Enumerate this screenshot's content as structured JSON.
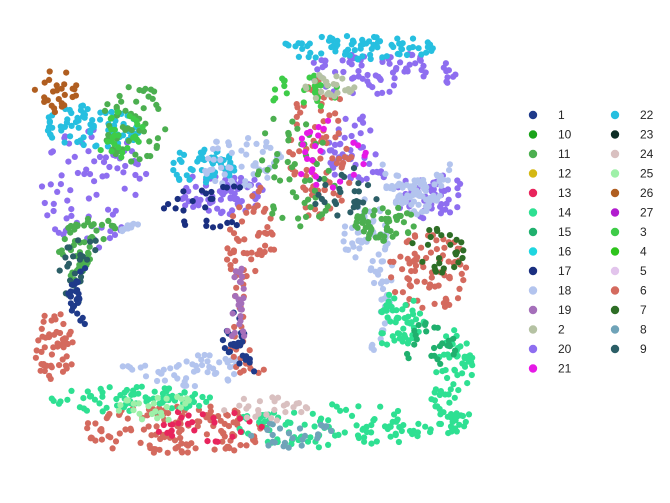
{
  "chart_data": {
    "type": "scatter",
    "title": "",
    "xlabel": "",
    "ylabel": "",
    "axes_visible": false,
    "grid": false,
    "legend_placement": "right",
    "legend_columns": 2,
    "xlim": [
      0,
      100
    ],
    "ylim": [
      0,
      100
    ],
    "series": [
      {
        "name": "1",
        "color": "#1f3a8a"
      },
      {
        "name": "10",
        "color": "#1aa31a"
      },
      {
        "name": "11",
        "color": "#4caf50"
      },
      {
        "name": "12",
        "color": "#d4b814"
      },
      {
        "name": "13",
        "color": "#e8245c"
      },
      {
        "name": "14",
        "color": "#2ee092"
      },
      {
        "name": "15",
        "color": "#20b06e"
      },
      {
        "name": "16",
        "color": "#1fd6e0"
      },
      {
        "name": "17",
        "color": "#1a2f80"
      },
      {
        "name": "18",
        "color": "#b3c4ee"
      },
      {
        "name": "19",
        "color": "#a56fba"
      },
      {
        "name": "2",
        "color": "#b5c2a3"
      },
      {
        "name": "20",
        "color": "#8e6ef0"
      },
      {
        "name": "21",
        "color": "#e619e6"
      },
      {
        "name": "22",
        "color": "#26bfe0"
      },
      {
        "name": "23",
        "color": "#0d2e26"
      },
      {
        "name": "24",
        "color": "#d9c0c0"
      },
      {
        "name": "25",
        "color": "#9ef0a8"
      },
      {
        "name": "26",
        "color": "#b05e20"
      },
      {
        "name": "27",
        "color": "#b21ccf"
      },
      {
        "name": "3",
        "color": "#3ecc48"
      },
      {
        "name": "4",
        "color": "#2ec41c"
      },
      {
        "name": "5",
        "color": "#e2c4ec"
      },
      {
        "name": "6",
        "color": "#d46a5e"
      },
      {
        "name": "7",
        "color": "#2e6e26"
      },
      {
        "name": "8",
        "color": "#6fa3b8"
      },
      {
        "name": "9",
        "color": "#2b5e66"
      }
    ],
    "regions": [
      {
        "cluster": "20",
        "weight": 3,
        "cx": 14,
        "cy": 36,
        "rx": 12,
        "ry": 14
      },
      {
        "cluster": "20",
        "weight": 3,
        "cx": 42,
        "cy": 37,
        "rx": 10,
        "ry": 5
      },
      {
        "cluster": "20",
        "weight": 3,
        "cx": 77,
        "cy": 10,
        "rx": 17,
        "ry": 5
      },
      {
        "cluster": "20",
        "weight": 2,
        "cx": 73,
        "cy": 27,
        "rx": 9,
        "ry": 8
      },
      {
        "cluster": "20",
        "weight": 2,
        "cx": 88,
        "cy": 37,
        "rx": 8,
        "ry": 6
      },
      {
        "cluster": "22",
        "weight": 3,
        "cx": 14,
        "cy": 22,
        "rx": 11,
        "ry": 5
      },
      {
        "cluster": "22",
        "weight": 2,
        "cx": 38,
        "cy": 31,
        "rx": 8,
        "ry": 4
      },
      {
        "cluster": "22",
        "weight": 3,
        "cx": 72,
        "cy": 4,
        "rx": 18,
        "ry": 3
      },
      {
        "cluster": "18",
        "weight": 3,
        "cx": 23,
        "cy": 58,
        "rx": 7,
        "ry": 14
      },
      {
        "cluster": "18",
        "weight": 2,
        "cx": 34,
        "cy": 77,
        "rx": 14,
        "ry": 4
      },
      {
        "cluster": "18",
        "weight": 3,
        "cx": 74,
        "cy": 56,
        "rx": 6,
        "ry": 18
      },
      {
        "cluster": "18",
        "weight": 3,
        "cx": 85,
        "cy": 28,
        "rx": 8,
        "ry": 14
      },
      {
        "cluster": "18",
        "weight": 2,
        "cx": 47,
        "cy": 30,
        "rx": 10,
        "ry": 6
      },
      {
        "cluster": "6",
        "weight": 5,
        "cx": 32,
        "cy": 91,
        "rx": 20,
        "ry": 6
      },
      {
        "cluster": "6",
        "weight": 3,
        "cx": 49,
        "cy": 58,
        "rx": 6,
        "ry": 24
      },
      {
        "cluster": "6",
        "weight": 3,
        "cx": 64,
        "cy": 28,
        "rx": 7,
        "ry": 17
      },
      {
        "cluster": "6",
        "weight": 3,
        "cx": 88,
        "cy": 55,
        "rx": 9,
        "ry": 9
      },
      {
        "cluster": "6",
        "weight": 2,
        "cx": 5,
        "cy": 72,
        "rx": 5,
        "ry": 8
      },
      {
        "cluster": "14",
        "weight": 4,
        "cx": 67,
        "cy": 90,
        "rx": 22,
        "ry": 5
      },
      {
        "cluster": "14",
        "weight": 3,
        "cx": 93,
        "cy": 80,
        "rx": 5,
        "ry": 12
      },
      {
        "cluster": "14",
        "weight": 3,
        "cx": 22,
        "cy": 84,
        "rx": 18,
        "ry": 3
      },
      {
        "cluster": "14",
        "weight": 2,
        "cx": 80,
        "cy": 66,
        "rx": 7,
        "ry": 6
      },
      {
        "cluster": "11",
        "weight": 2,
        "cx": 23,
        "cy": 21,
        "rx": 7,
        "ry": 9
      },
      {
        "cluster": "11",
        "weight": 2,
        "cx": 59,
        "cy": 31,
        "rx": 9,
        "ry": 14
      },
      {
        "cluster": "11",
        "weight": 2,
        "cx": 78,
        "cy": 44,
        "rx": 7,
        "ry": 4
      },
      {
        "cluster": "11",
        "weight": 2,
        "cx": 14,
        "cy": 50,
        "rx": 8,
        "ry": 8
      },
      {
        "cluster": "3",
        "weight": 1,
        "cx": 20,
        "cy": 24,
        "rx": 6,
        "ry": 6
      },
      {
        "cluster": "3",
        "weight": 1,
        "cx": 60,
        "cy": 14,
        "rx": 8,
        "ry": 4
      },
      {
        "cluster": "2",
        "weight": 1,
        "cx": 66,
        "cy": 13,
        "rx": 6,
        "ry": 3
      },
      {
        "cluster": "9",
        "weight": 1,
        "cx": 70,
        "cy": 37,
        "rx": 8,
        "ry": 6
      },
      {
        "cluster": "9",
        "weight": 1,
        "cx": 12,
        "cy": 55,
        "rx": 6,
        "ry": 8
      },
      {
        "cluster": "1",
        "weight": 1,
        "cx": 48,
        "cy": 70,
        "rx": 6,
        "ry": 8
      },
      {
        "cluster": "1",
        "weight": 1,
        "cx": 16,
        "cy": 60,
        "rx": 8,
        "ry": 8
      },
      {
        "cluster": "13",
        "weight": 1,
        "cx": 40,
        "cy": 90,
        "rx": 14,
        "ry": 4
      },
      {
        "cluster": "21",
        "weight": 1,
        "cx": 66,
        "cy": 28,
        "rx": 8,
        "ry": 8
      },
      {
        "cluster": "15",
        "weight": 1,
        "cx": 88,
        "cy": 72,
        "rx": 6,
        "ry": 6
      },
      {
        "cluster": "7",
        "weight": 1,
        "cx": 90,
        "cy": 50,
        "rx": 6,
        "ry": 6
      },
      {
        "cluster": "17",
        "weight": 1,
        "cx": 40,
        "cy": 40,
        "rx": 12,
        "ry": 5
      },
      {
        "cluster": "8",
        "weight": 1,
        "cx": 58,
        "cy": 92,
        "rx": 10,
        "ry": 3
      },
      {
        "cluster": "25",
        "weight": 1,
        "cx": 28,
        "cy": 86,
        "rx": 10,
        "ry": 3
      },
      {
        "cluster": "24",
        "weight": 1,
        "cx": 52,
        "cy": 86,
        "rx": 10,
        "ry": 3
      },
      {
        "cluster": "26",
        "weight": 1,
        "cx": 6,
        "cy": 14,
        "rx": 5,
        "ry": 5
      },
      {
        "cluster": "19",
        "weight": 1,
        "cx": 46,
        "cy": 62,
        "rx": 5,
        "ry": 8
      }
    ],
    "holes": [
      {
        "cx": 28,
        "cy": 60,
        "rx": 17,
        "ry": 16
      },
      {
        "cx": 62,
        "cy": 64,
        "rx": 15,
        "ry": 16
      },
      {
        "cx": 85,
        "cy": 23,
        "rx": 10,
        "ry": 11
      },
      {
        "cx": 41,
        "cy": 8,
        "rx": 10,
        "ry": 6
      }
    ]
  }
}
